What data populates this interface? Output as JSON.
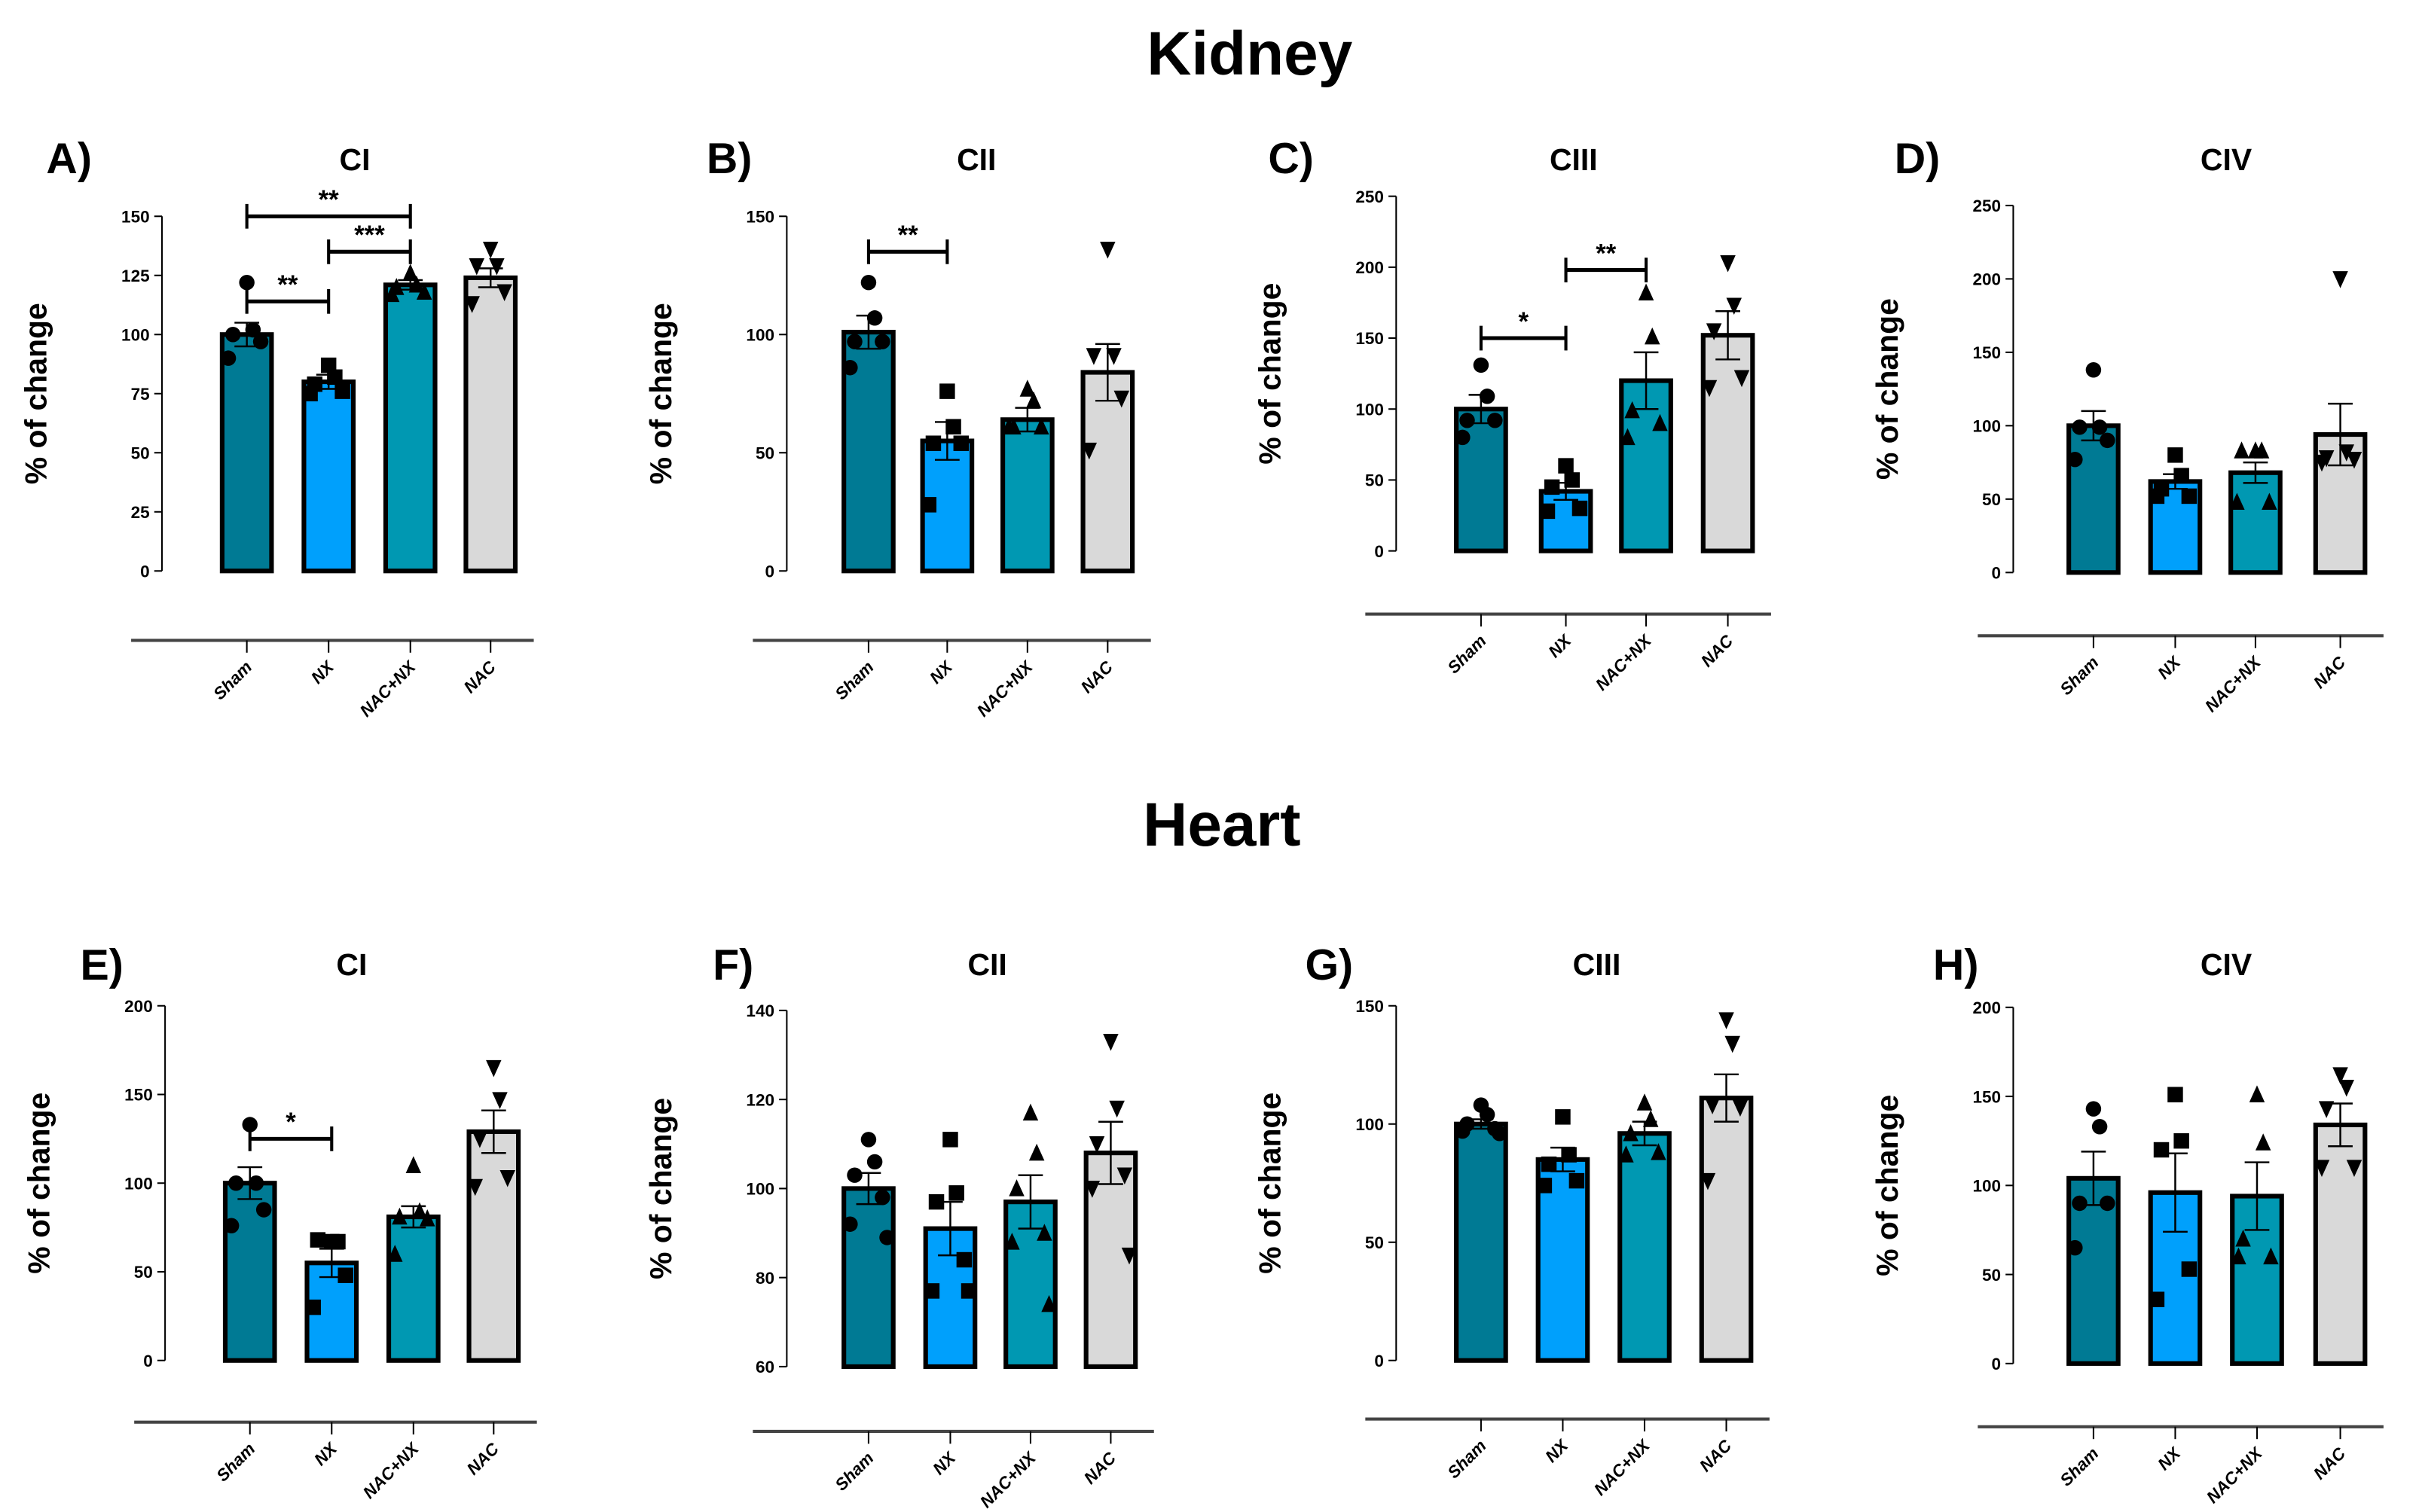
{
  "sections": [
    "Kidney",
    "Heart"
  ],
  "chart_data": [
    {
      "type": "bar",
      "panel": "A)",
      "title": "CI",
      "section": "Kidney",
      "ylabel": "% of change",
      "ylim": [
        0,
        150
      ],
      "yticks": [
        0,
        25,
        50,
        75,
        100,
        125,
        150
      ],
      "categories": [
        "Sham",
        "NX",
        "NAC+NX",
        "NAC"
      ],
      "means": [
        100,
        80,
        121,
        124
      ],
      "sem": [
        5,
        3,
        2,
        4
      ],
      "points": [
        [
          122,
          102,
          100,
          97,
          90
        ],
        [
          87,
          82,
          79,
          76,
          75
        ],
        [
          126,
          121,
          120,
          118,
          117
        ],
        [
          136,
          129,
          129,
          118,
          113
        ]
      ],
      "significance": [
        {
          "from": 0,
          "to": 1,
          "label": "**",
          "y": 114
        },
        {
          "from": 1,
          "to": 2,
          "label": "***",
          "y": 135
        },
        {
          "from": 0,
          "to": 2,
          "label": "**",
          "y": 150
        }
      ]
    },
    {
      "type": "bar",
      "panel": "B)",
      "title": "CII",
      "section": "Kidney",
      "ylabel": "% of change",
      "ylim": [
        0,
        150
      ],
      "yticks": [
        0,
        50,
        100,
        150
      ],
      "categories": [
        "Sham",
        "NX",
        "NAC+NX",
        "NAC"
      ],
      "means": [
        101,
        55,
        64,
        84
      ],
      "sem": [
        7,
        8,
        5,
        12
      ],
      "points": [
        [
          122,
          107,
          97,
          97,
          86
        ],
        [
          76,
          61,
          54,
          54,
          28
        ],
        [
          77,
          72,
          61,
          61,
          61
        ],
        [
          136,
          91,
          91,
          73,
          51
        ]
      ],
      "significance": [
        {
          "from": 0,
          "to": 1,
          "label": "**",
          "y": 135
        }
      ]
    },
    {
      "type": "bar",
      "panel": "C)",
      "title": "CIII",
      "section": "Kidney",
      "ylabel": "% of change",
      "ylim": [
        0,
        250
      ],
      "yticks": [
        0,
        50,
        100,
        150,
        200,
        250
      ],
      "categories": [
        "Sham",
        "NX",
        "NAC+NX",
        "NAC"
      ],
      "means": [
        100,
        42,
        120,
        152
      ],
      "sem": [
        10,
        6,
        20,
        17
      ],
      "points": [
        [
          131,
          109,
          92,
          92,
          80
        ],
        [
          60,
          50,
          45,
          30,
          28
        ],
        [
          182,
          151,
          99,
          90,
          80
        ],
        [
          203,
          173,
          155,
          122,
          115
        ]
      ],
      "significance": [
        {
          "from": 0,
          "to": 1,
          "label": "*",
          "y": 150
        },
        {
          "from": 1,
          "to": 2,
          "label": "**",
          "y": 198
        }
      ]
    },
    {
      "type": "bar",
      "panel": "D)",
      "title": "CIV",
      "section": "Kidney",
      "ylabel": "% of change",
      "ylim": [
        0,
        250
      ],
      "yticks": [
        0,
        50,
        100,
        150,
        200,
        250
      ],
      "categories": [
        "Sham",
        "NX",
        "NAC+NX",
        "NAC"
      ],
      "means": [
        100,
        62,
        68,
        94
      ],
      "sem": [
        10,
        5,
        7,
        21
      ],
      "points": [
        [
          138,
          99,
          99,
          90,
          77
        ],
        [
          80,
          66,
          57,
          52,
          52
        ],
        [
          83,
          83,
          83,
          48,
          48
        ],
        [
          200,
          82,
          78,
          77,
          75
        ]
      ],
      "significance": []
    },
    {
      "type": "bar",
      "panel": "E)",
      "title": "CI",
      "section": "Heart",
      "ylabel": "% of change",
      "ylim": [
        0,
        200
      ],
      "yticks": [
        0,
        50,
        100,
        150,
        200
      ],
      "categories": [
        "Sham",
        "NX",
        "NAC+NX",
        "NAC"
      ],
      "means": [
        100,
        55,
        81,
        129
      ],
      "sem": [
        9,
        8,
        6,
        12
      ],
      "points": [
        [
          133,
          100,
          100,
          85,
          76
        ],
        [
          67,
          67,
          68,
          48,
          30
        ],
        [
          110,
          84,
          81,
          80,
          60
        ],
        [
          165,
          147,
          125,
          103,
          98
        ]
      ],
      "significance": [
        {
          "from": 0,
          "to": 1,
          "label": "*",
          "y": 125
        }
      ]
    },
    {
      "type": "bar",
      "panel": "F)",
      "title": "CII",
      "section": "Heart",
      "ylabel": "% of change",
      "ylim": [
        60,
        140
      ],
      "yticks": [
        60,
        80,
        100,
        120,
        140
      ],
      "categories": [
        "Sham",
        "NX",
        "NAC+NX",
        "NAC"
      ],
      "means": [
        100,
        91,
        97,
        108
      ],
      "sem": [
        3.5,
        6,
        6,
        7
      ],
      "points": [
        [
          111,
          106,
          103,
          98,
          92,
          89
        ],
        [
          111,
          99,
          97,
          84,
          77,
          77
        ],
        [
          117,
          108,
          100,
          90,
          88,
          74
        ],
        [
          133,
          118,
          110,
          103,
          100,
          85
        ]
      ],
      "significance": []
    },
    {
      "type": "bar",
      "panel": "G)",
      "title": "CIII",
      "section": "Heart",
      "ylabel": "% of change",
      "ylim": [
        0,
        150
      ],
      "yticks": [
        0,
        50,
        100,
        150
      ],
      "categories": [
        "Sham",
        "NX",
        "NAC+NX",
        "NAC"
      ],
      "means": [
        100,
        85,
        96,
        111
      ],
      "sem": [
        2,
        5,
        5,
        10
      ],
      "points": [
        [
          108,
          104,
          100,
          98,
          97,
          96
        ],
        [
          103,
          87,
          83,
          76,
          74
        ],
        [
          109,
          102,
          96,
          88,
          87
        ],
        [
          144,
          134,
          108,
          107,
          76
        ]
      ],
      "significance": []
    },
    {
      "type": "bar",
      "panel": "H)",
      "title": "CIV",
      "section": "Heart",
      "ylabel": "% of change",
      "ylim": [
        0,
        200
      ],
      "yticks": [
        0,
        50,
        100,
        150,
        200
      ],
      "categories": [
        "Sham",
        "NX",
        "NAC+NX",
        "NAC"
      ],
      "means": [
        104,
        96,
        94,
        134
      ],
      "sem": [
        15,
        22,
        19,
        12
      ],
      "points": [
        [
          143,
          133,
          90,
          90,
          65
        ],
        [
          151,
          125,
          120,
          53,
          36
        ],
        [
          151,
          124,
          70,
          60,
          60
        ],
        [
          162,
          155,
          143,
          110,
          110
        ]
      ],
      "significance": []
    }
  ],
  "colors": {
    "Sham": "#007a94",
    "NX": "#00a0fc",
    "NAC+NX": "#0098b2",
    "NAC": "#d9d9d9"
  },
  "markers": [
    "circle",
    "square",
    "triangle-up",
    "triangle-down"
  ]
}
